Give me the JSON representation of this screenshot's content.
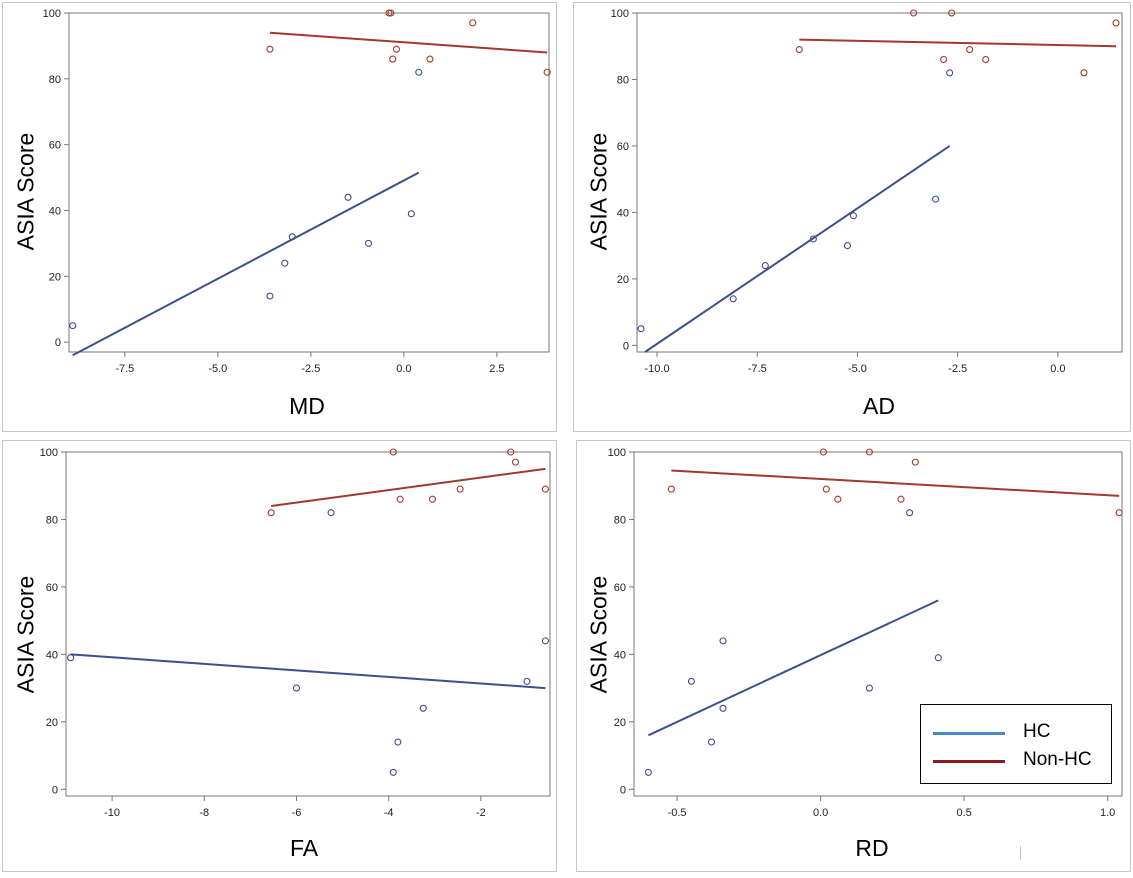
{
  "colors": {
    "hc": "#3e4f8c",
    "nonhc": "#a13a2c",
    "legend_hc": "#4a86c8",
    "legend_nonhc": "#8b1a1a",
    "axis": "#777777",
    "frame": "#c8c8c8"
  },
  "legend": {
    "items": [
      {
        "label": "HC",
        "series": "hc"
      },
      {
        "label": "Non-HC",
        "series": "nonhc"
      }
    ]
  },
  "chart_data": [
    {
      "type": "scatter",
      "xlabel": "MD",
      "ylabel": "ASIA Score",
      "xlim": [
        -9.0,
        3.9
      ],
      "ylim": [
        -3,
        100
      ],
      "xticks": [
        -7.5,
        -5.0,
        -2.5,
        0.0,
        2.5
      ],
      "xtick_labels": [
        "-7.5",
        "-5.0",
        "-2.5",
        "0.0",
        "2.5"
      ],
      "yticks": [
        0,
        20,
        40,
        60,
        80,
        100
      ],
      "ytick_labels": [
        "0",
        "20",
        "40",
        "60",
        "80",
        "100"
      ],
      "series": [
        {
          "name": "HC",
          "key": "hc",
          "x": [
            -8.9,
            -3.6,
            -3.2,
            -3.0,
            -1.5,
            -0.95,
            0.2,
            0.4
          ],
          "y": [
            5,
            14,
            24,
            32,
            44,
            30,
            39,
            82
          ],
          "fit": {
            "x": [
              -8.9,
              0.4
            ],
            "y": [
              -4,
              51.5
            ]
          }
        },
        {
          "name": "Non-HC",
          "key": "nonhc",
          "x": [
            -3.6,
            -0.4,
            -0.35,
            -0.3,
            -0.2,
            0.7,
            1.85,
            3.85
          ],
          "y": [
            89,
            100,
            100,
            86,
            89,
            86,
            97,
            82
          ],
          "fit": {
            "x": [
              -3.6,
              3.85
            ],
            "y": [
              94,
              88
            ]
          }
        }
      ]
    },
    {
      "type": "scatter",
      "xlabel": "AD",
      "ylabel": "ASIA Score",
      "xlim": [
        -10.5,
        1.6
      ],
      "ylim": [
        -2,
        100
      ],
      "xticks": [
        -10.0,
        -7.5,
        -5.0,
        -2.5,
        0.0
      ],
      "xtick_labels": [
        "-10.0",
        "-7.5",
        "-5.0",
        "-2.5",
        "0.0"
      ],
      "yticks": [
        0,
        20,
        40,
        60,
        80,
        100
      ],
      "ytick_labels": [
        "0",
        "20",
        "40",
        "60",
        "80",
        "100"
      ],
      "series": [
        {
          "name": "HC",
          "key": "hc",
          "x": [
            -10.4,
            -8.1,
            -7.3,
            -6.1,
            -5.25,
            -5.1,
            -3.05,
            -2.7
          ],
          "y": [
            5,
            14,
            24,
            32,
            30,
            39,
            44,
            82
          ],
          "fit": {
            "x": [
              -10.3,
              -2.7
            ],
            "y": [
              -2,
              60
            ]
          }
        },
        {
          "name": "Non-HC",
          "key": "nonhc",
          "x": [
            -6.45,
            -3.6,
            -2.85,
            -2.65,
            -2.2,
            -1.8,
            0.65,
            1.45
          ],
          "y": [
            89,
            100,
            86,
            100,
            89,
            86,
            82,
            97
          ],
          "fit": {
            "x": [
              -6.45,
              1.45
            ],
            "y": [
              92,
              90
            ]
          }
        }
      ]
    },
    {
      "type": "scatter",
      "xlabel": "FA",
      "ylabel": "ASIA Score",
      "xlim": [
        -11.0,
        -0.5
      ],
      "ylim": [
        -2,
        100
      ],
      "xticks": [
        -10,
        -8,
        -6,
        -4,
        -2
      ],
      "xtick_labels": [
        "-10",
        "-8",
        "-6",
        "-4",
        "-2"
      ],
      "yticks": [
        0,
        20,
        40,
        60,
        80,
        100
      ],
      "ytick_labels": [
        "0",
        "20",
        "40",
        "60",
        "80",
        "100"
      ],
      "series": [
        {
          "name": "HC",
          "key": "hc",
          "x": [
            -10.9,
            -6.0,
            -5.25,
            -3.9,
            -3.8,
            -3.25,
            -1.0,
            -0.6
          ],
          "y": [
            39,
            30,
            82,
            5,
            14,
            24,
            32,
            44
          ],
          "fit": {
            "x": [
              -10.9,
              -0.6
            ],
            "y": [
              40,
              30
            ]
          }
        },
        {
          "name": "Non-HC",
          "key": "nonhc",
          "x": [
            -6.55,
            -3.9,
            -3.75,
            -3.05,
            -2.45,
            -1.35,
            -1.25,
            -0.6
          ],
          "y": [
            82,
            100,
            86,
            86,
            89,
            100,
            97,
            89
          ],
          "fit": {
            "x": [
              -6.55,
              -0.6
            ],
            "y": [
              84,
              95
            ]
          }
        }
      ]
    },
    {
      "type": "scatter",
      "xlabel": "RD",
      "ylabel": "ASIA Score",
      "xlim": [
        -0.65,
        1.05
      ],
      "ylim": [
        -2,
        100
      ],
      "xticks": [
        -0.5,
        0.0,
        0.5,
        1.0
      ],
      "xtick_labels": [
        "-0.5",
        "0.0",
        "0.5",
        "1.0"
      ],
      "yticks": [
        0,
        20,
        40,
        60,
        80,
        100
      ],
      "ytick_labels": [
        "0",
        "20",
        "40",
        "60",
        "80",
        "100"
      ],
      "series": [
        {
          "name": "HC",
          "key": "hc",
          "x": [
            -0.6,
            -0.45,
            -0.38,
            -0.34,
            -0.34,
            0.17,
            0.31,
            0.41
          ],
          "y": [
            5,
            32,
            14,
            24,
            44,
            30,
            82,
            39
          ],
          "fit": {
            "x": [
              -0.6,
              0.41
            ],
            "y": [
              16,
              56
            ]
          }
        },
        {
          "name": "Non-HC",
          "key": "nonhc",
          "x": [
            -0.52,
            0.01,
            0.02,
            0.06,
            0.17,
            0.28,
            0.33,
            1.04
          ],
          "y": [
            89,
            100,
            89,
            86,
            100,
            86,
            97,
            82
          ],
          "fit": {
            "x": [
              -0.52,
              1.04
            ],
            "y": [
              94.5,
              87
            ]
          }
        }
      ]
    }
  ]
}
